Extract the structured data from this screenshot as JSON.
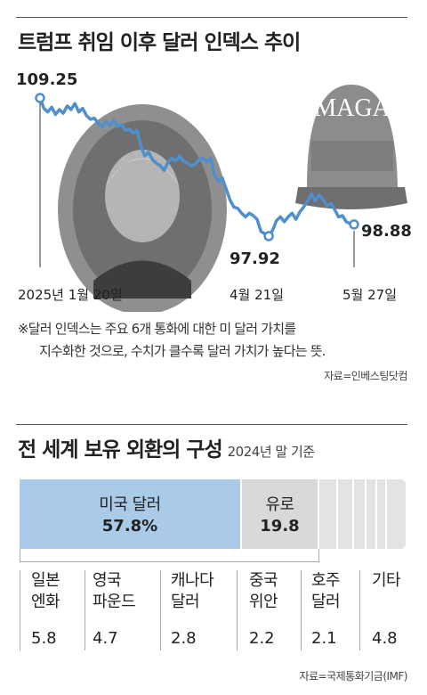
{
  "chart_data": [
    {
      "type": "line",
      "title": "트럼프 취임 이후 달러 인덱스 추이",
      "x_labels": [
        "2025년 1월 20일",
        "4월 21일",
        "5월 27일"
      ],
      "annotations": [
        {
          "label": "109.25",
          "value": 109.25
        },
        {
          "label": "97.92",
          "value": 97.92
        },
        {
          "label": "98.88",
          "value": 98.88
        }
      ],
      "series": [
        {
          "color": "#4f8fcc",
          "values": [
            109.25,
            108.4,
            108.1,
            108.5,
            107.9,
            108.3,
            108.0,
            108.6,
            108.3,
            108.8,
            108.1,
            108.4,
            107.8,
            107.5,
            107.6,
            107.2,
            106.9,
            107.3,
            107.0,
            107.4,
            106.9,
            107.1,
            106.6,
            106.7,
            106.4,
            106.6,
            105.3,
            104.5,
            104.8,
            104.2,
            103.9,
            103.7,
            103.3,
            104.0,
            104.3,
            104.1,
            104.5,
            104.1,
            103.9,
            103.7,
            103.8,
            104.2,
            104.3,
            104.0,
            104.3,
            102.9,
            102.4,
            102.7,
            101.8,
            100.9,
            100.3,
            100.2,
            99.8,
            99.5,
            99.8,
            99.6,
            99.3,
            98.3,
            98.1,
            97.92,
            98.4,
            99.2,
            99.5,
            99.1,
            99.5,
            99.8,
            99.3,
            99.9,
            100.3,
            100.8,
            101.4,
            100.8,
            101.3,
            100.9,
            100.4,
            100.6,
            100.1,
            99.5,
            99.6,
            99.1,
            98.95,
            98.88
          ]
        }
      ]
    },
    {
      "type": "bar",
      "title": "전 세계 보유 외환의 구성",
      "subtitle": "2024년 말 기준",
      "categories": [
        "미국 달러",
        "유로",
        "일본 엔화",
        "영국 파운드",
        "캐나다 달러",
        "중국 위안",
        "호주 달러",
        "기타"
      ],
      "values": [
        57.8,
        19.8,
        5.8,
        4.7,
        2.8,
        2.2,
        2.1,
        4.8
      ],
      "value_labels": [
        "57.8%",
        "19.8",
        "5.8",
        "4.7",
        "2.8",
        "2.2",
        "2.1",
        "4.8"
      ]
    }
  ],
  "image_text": "MAGA",
  "note_line1": "※달러 인덱스는 주요 6개 통화에 대한 미 달러 가치를",
  "note_line2": "지수화한 것으로, 수치가 클수록 달러 가치가 높다는 뜻.",
  "source1": "자료=인베스팅닷컴",
  "source2": "자료=국제통화기금(IMF)",
  "cells": [
    {
      "l1": "일본",
      "l2": "엔화"
    },
    {
      "l1": "영국",
      "l2": "파운드"
    },
    {
      "l1": "캐나다",
      "l2": "달러"
    },
    {
      "l1": "중국",
      "l2": "위안"
    },
    {
      "l1": "호주",
      "l2": "달러"
    },
    {
      "l1": "",
      "l2": "기타"
    }
  ],
  "colors": {
    "usd": "#a9cbe8",
    "eur": "#d9d9d9",
    "other": "#e3e3e3",
    "line": "#4f8fcc"
  }
}
